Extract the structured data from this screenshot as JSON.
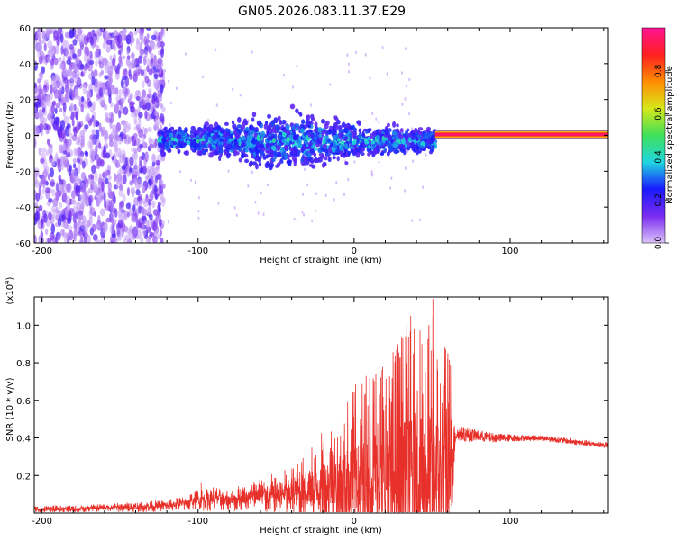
{
  "page": {
    "title": "GN05.2026.083.11.37.E29"
  },
  "colors": {
    "snr_line": "#e8302a",
    "dense_purple": "#7a2cf0",
    "light_purple": "#c9a6f5",
    "cyan": "#1fd6e0",
    "green": "#3fe05a",
    "red": "#ff2020",
    "bar_fill": "#ffffff"
  },
  "chart_data": [
    {
      "type": "heatmap",
      "title": "GN05.2026.083.11.37.E29",
      "xlabel": "Height of straight line (km)",
      "ylabel": "Frequency (Hz)",
      "xlim": [
        -205,
        163
      ],
      "ylim": [
        -60,
        60
      ],
      "x_ticks": [
        -200,
        -100,
        0,
        100
      ],
      "y_ticks": [
        -60,
        -40,
        -20,
        0,
        20,
        40,
        60
      ],
      "colorbar": {
        "label": "Normalized spectral amplitude",
        "range": [
          0,
          1
        ],
        "ticks": [
          0.0,
          0.2,
          0.4,
          0.6,
          0.8
        ],
        "colormap": [
          "#dcc3fa",
          "#7a2cf0",
          "#1a1aff",
          "#1fd6e0",
          "#3fe05a",
          "#d6e81a",
          "#ff8c00",
          "#ff2020",
          "#ff1493"
        ]
      },
      "regions": [
        {
          "x_range": [
            -205,
            -122
          ],
          "freq_range": [
            -60,
            60
          ],
          "amplitude": [
            0.02,
            0.2
          ],
          "description": "scattered noise"
        },
        {
          "x_range": [
            -125,
            52
          ],
          "freq_center": -3,
          "freq_halfwidth": [
            5,
            12
          ],
          "amplitude": [
            0.15,
            0.45
          ]
        },
        {
          "x_range": [
            52,
            163
          ],
          "freq_center": 0.5,
          "freq_halfwidth": 2.5,
          "amplitude": [
            0.5,
            0.95
          ]
        }
      ]
    },
    {
      "type": "line",
      "xlabel": "Height of straight line (km)",
      "ylabel": "SNR (10 * v/v)",
      "y_scale_label": "(x10",
      "y_scale_exp": "4",
      "xlim": [
        -205,
        163
      ],
      "ylim": [
        0,
        1.15
      ],
      "x_ticks": [
        -200,
        -100,
        0,
        100
      ],
      "y_ticks": [
        0.2,
        0.4,
        0.6,
        0.8,
        1.0
      ],
      "series": [
        {
          "x": [
            -205,
            -180,
            -160,
            -140,
            -120,
            -110,
            -100,
            -90,
            -80,
            -70,
            -60,
            -50,
            -40,
            -30,
            -20,
            -10,
            0,
            10,
            20,
            30,
            40,
            45,
            50,
            55,
            62,
            65,
            70,
            80,
            90,
            100,
            110,
            120,
            130,
            140,
            150,
            163
          ],
          "noise_amp": [
            0.02,
            0.02,
            0.02,
            0.03,
            0.03,
            0.04,
            0.06,
            0.07,
            0.06,
            0.08,
            0.1,
            0.12,
            0.15,
            0.2,
            0.3,
            0.4,
            0.5,
            0.6,
            0.7,
            0.8,
            0.9,
            0.85,
            0.9,
            0.75,
            0.7,
            0.08,
            0.08,
            0.06,
            0.05,
            0.04,
            0.03,
            0.03,
            0.03,
            0.03,
            0.03,
            0.03
          ],
          "baseline": [
            0.02,
            0.02,
            0.03,
            0.03,
            0.04,
            0.05,
            0.07,
            0.08,
            0.07,
            0.08,
            0.09,
            0.1,
            0.1,
            0.12,
            0.14,
            0.16,
            0.18,
            0.2,
            0.2,
            0.2,
            0.2,
            0.2,
            0.2,
            0.2,
            0.2,
            0.42,
            0.42,
            0.41,
            0.4,
            0.4,
            0.4,
            0.4,
            0.39,
            0.38,
            0.37,
            0.36
          ],
          "peaks": [
            [
              50.5,
              1.14
            ],
            [
              38.5,
              0.98
            ],
            [
              43.5,
              0.9
            ],
            [
              33,
              0.94
            ],
            [
              28,
              0.9
            ],
            [
              48,
              1.0
            ],
            [
              60,
              0.82
            ],
            [
              -70,
              0.13
            ],
            [
              -98,
              0.16
            ]
          ]
        }
      ]
    }
  ]
}
